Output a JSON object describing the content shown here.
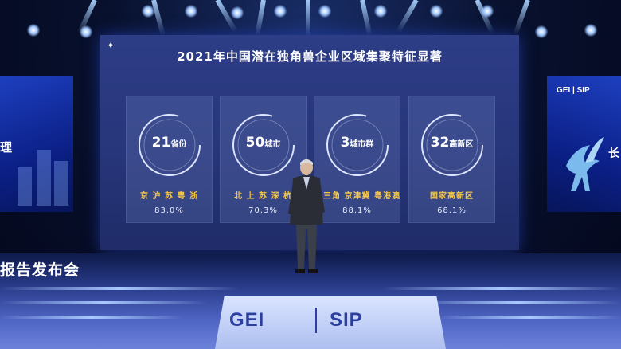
{
  "slide": {
    "title": "2021年中国潜在独角兽企业区域集聚特征显著",
    "cards": [
      {
        "number": "21",
        "unit": "省份",
        "cities": "京 沪 苏 粤 浙",
        "percent": "83.0%"
      },
      {
        "number": "50",
        "unit": "城市",
        "cities": "北 上 苏 深 杭",
        "percent": "70.3%"
      },
      {
        "number": "3",
        "unit": "城市群",
        "cities": "长三角 京津冀 粤港澳",
        "percent": "88.1%"
      },
      {
        "number": "32",
        "unit": "高新区",
        "cities": "国家高新区",
        "percent": "68.1%"
      }
    ]
  },
  "side_screens": {
    "left_char": "理",
    "right_brand": "GEI | SIP",
    "right_char": "长"
  },
  "stage": {
    "banner_text": "报告发布会",
    "platform_left": "GEI",
    "platform_right": "SIP"
  },
  "colors": {
    "screen_bg": "#2d3d86",
    "accent_gold": "#f5c84a",
    "ring": "#dfe6ff"
  }
}
